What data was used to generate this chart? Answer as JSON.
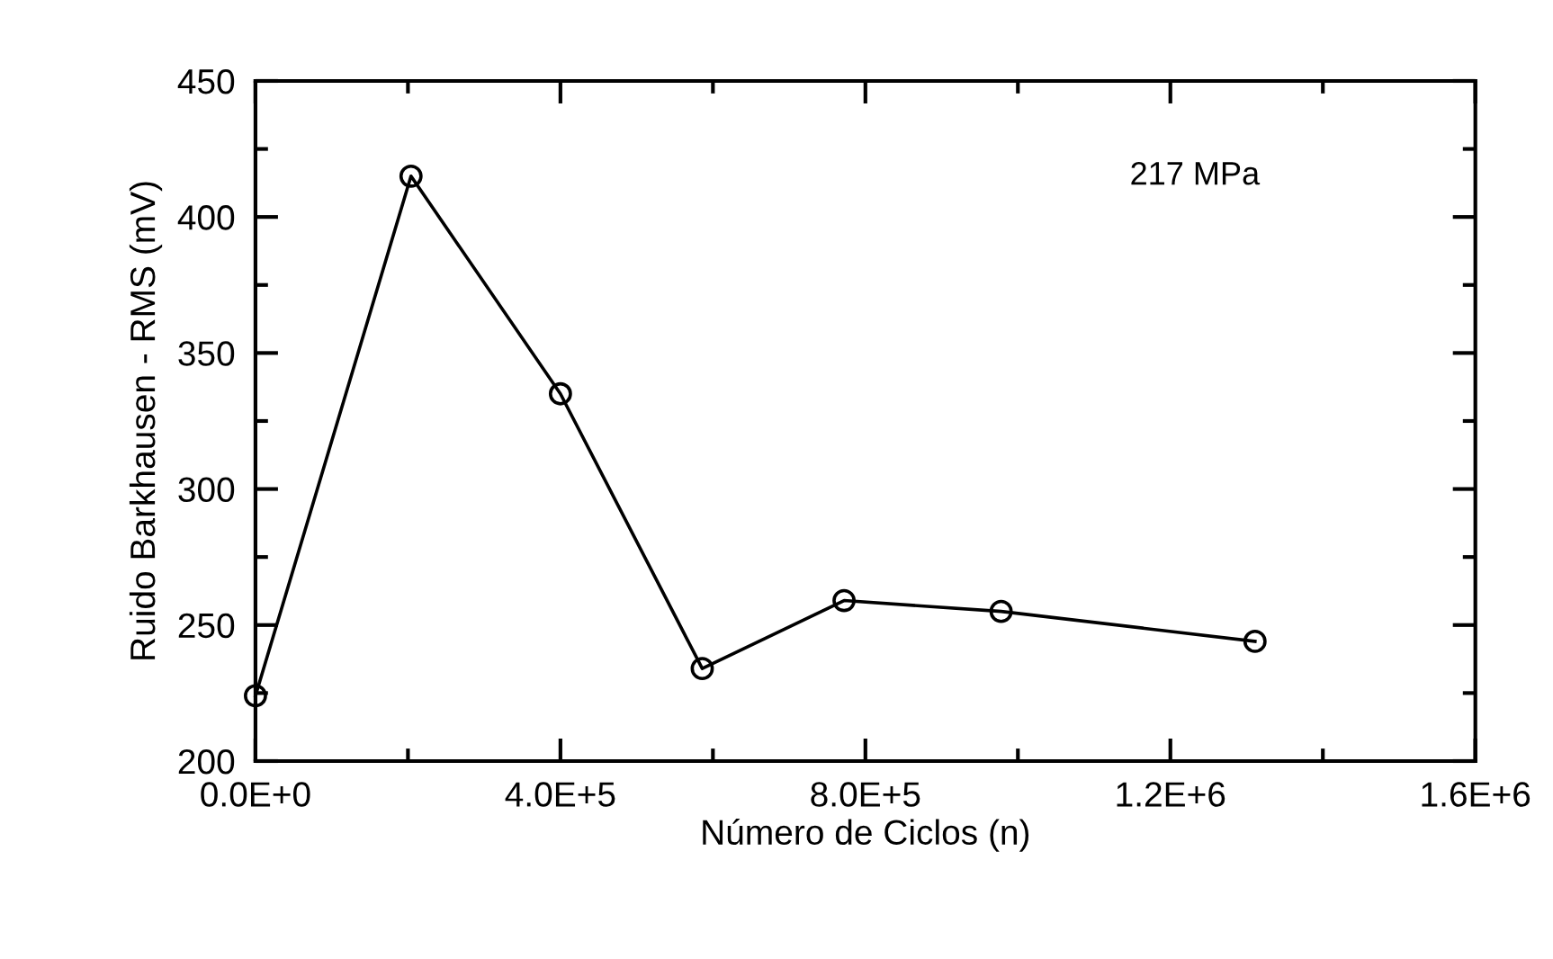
{
  "chart_data": {
    "type": "line",
    "xlabel": "Número de Ciclos (n)",
    "ylabel": "Ruido Barkhausen - RMS (mV)",
    "annotations": [
      "217 MPa"
    ],
    "x": [
      0,
      204000,
      400000,
      586000,
      772000,
      978000,
      1311000
    ],
    "series": [
      {
        "color": "#000000",
        "values": [
          224,
          415,
          335,
          234,
          259,
          255,
          244
        ]
      }
    ],
    "marker": "circle",
    "line_style": "solid",
    "xlim": [
      0,
      1600000
    ],
    "xticks": [
      {
        "value": 0,
        "label": "0.0E+0"
      },
      {
        "value": 400000,
        "label": "4.0E+5"
      },
      {
        "value": 800000,
        "label": "8.0E+5"
      },
      {
        "value": 1200000,
        "label": "1.2E+6"
      },
      {
        "value": 1600000,
        "label": "1.6E+6"
      }
    ],
    "ylim": [
      200,
      450
    ],
    "yticks": [
      200,
      250,
      300,
      350,
      400,
      450
    ]
  }
}
